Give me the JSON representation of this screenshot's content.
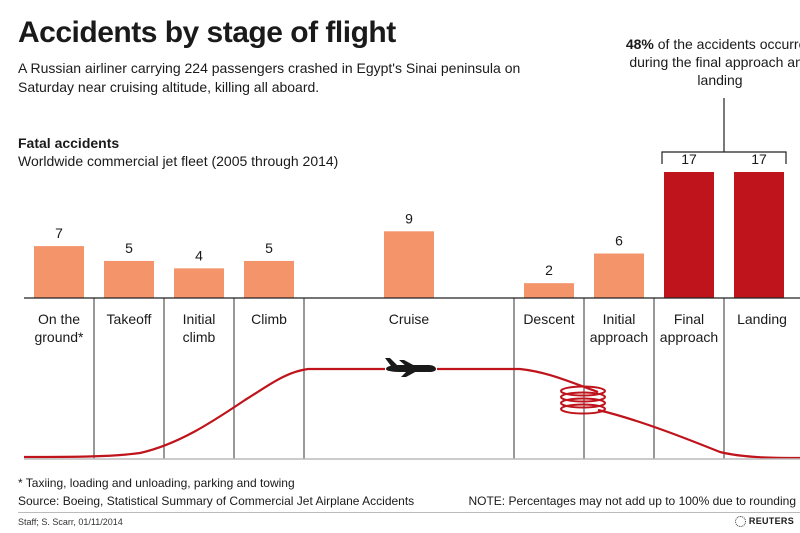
{
  "title": "Accidents by stage of flight",
  "subtitle": "A Russian airliner carrying 224 passengers crashed in Egypt's Sinai peninsula on Saturday near cruising altitude, killing all aboard.",
  "section_title": "Fatal accidents",
  "section_subtitle": "Worldwide commercial jet fleet (2005 through 2014)",
  "callout": {
    "percent": "48%",
    "text": " of the accidents occurred during the final approach and landing"
  },
  "footnote": "* Taxiing, loading and unloading, parking and towing",
  "source": "Source: Boeing, Statistical Summary of Commercial Jet Airplane Accidents",
  "note": "NOTE: Percentages may not add up to 100% due to rounding",
  "credit": "Staff; S. Scarr, 01/11/2014",
  "brand": "REUTERS",
  "colors": {
    "bar": "#f4946a",
    "highlight_bar": "#c0141c",
    "flight_path": "#c0141c"
  },
  "icons": {
    "plane": "airplane-icon",
    "spiral": "holding-spiral-icon"
  },
  "chart_data": {
    "type": "bar",
    "title": "",
    "categories": [
      [
        "On the",
        "ground*"
      ],
      [
        "Takeoff"
      ],
      [
        "Initial",
        "climb"
      ],
      [
        "Climb"
      ],
      [
        "Cruise"
      ],
      [
        "Descent"
      ],
      [
        "Initial",
        "approach"
      ],
      [
        "Final",
        "approach"
      ],
      [
        "Landing"
      ]
    ],
    "values": [
      7,
      5,
      4,
      5,
      9,
      2,
      6,
      17,
      17
    ],
    "highlighted": [
      false,
      false,
      false,
      false,
      false,
      false,
      false,
      true,
      true
    ],
    "ylim": [
      0,
      17
    ],
    "grid": false,
    "legend": "none"
  }
}
